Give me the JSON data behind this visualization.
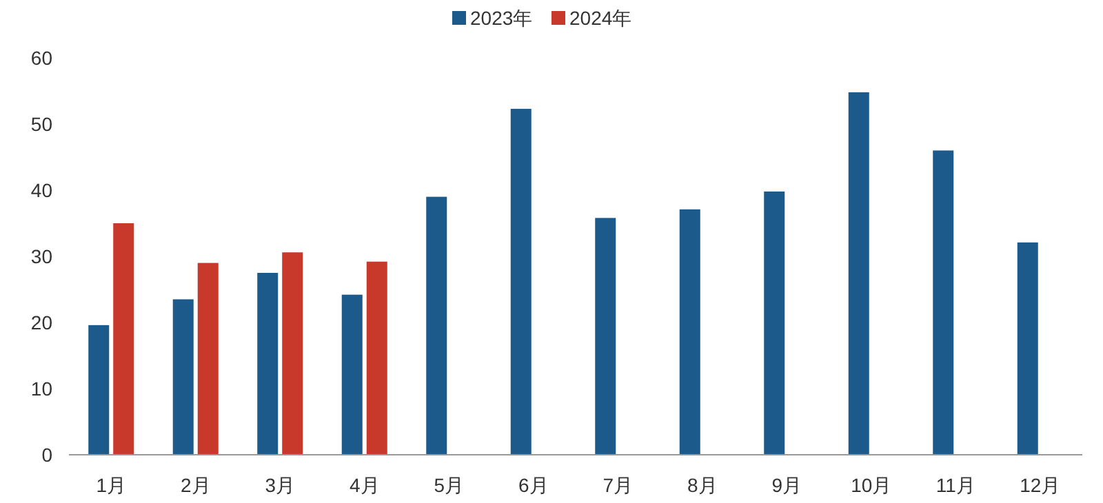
{
  "chart_data": {
    "type": "bar",
    "categories": [
      "1月",
      "2月",
      "3月",
      "4月",
      "5月",
      "6月",
      "7月",
      "8月",
      "9月",
      "10月",
      "11月",
      "12月"
    ],
    "series": [
      {
        "name": "2023年",
        "color": "#1b5a8a",
        "values": [
          19.6,
          23.5,
          27.5,
          24.2,
          39,
          52.3,
          35.8,
          37.1,
          39.8,
          54.8,
          46,
          32.1
        ]
      },
      {
        "name": "2024年",
        "color": "#c8392b",
        "values": [
          35,
          29,
          30.6,
          29.2,
          null,
          null,
          null,
          null,
          null,
          null,
          null,
          null
        ]
      }
    ],
    "ylim": [
      0,
      60
    ],
    "yticks": [
      0,
      10,
      20,
      30,
      40,
      50,
      60
    ],
    "legend": "top"
  }
}
